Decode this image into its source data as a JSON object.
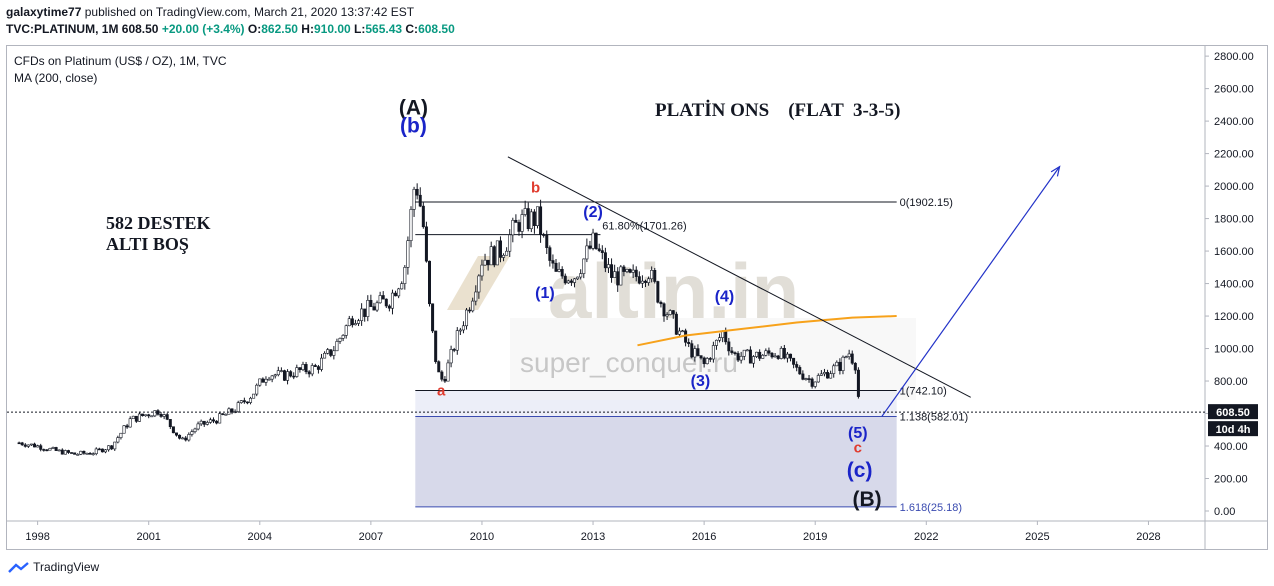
{
  "header": {
    "publisher": "galaxytime77",
    "published_text": "published on TradingView.com, March 21, 2020 13:37:42 EST",
    "symbol": "TVC:PLATINUM, 1M",
    "last": "608.50",
    "change": "+20.00 (+3.4%)",
    "o_label": "O:",
    "o_value": "862.50",
    "h_label": "H:",
    "h_value": "910.00",
    "l_label": "L:",
    "l_value": "565.43",
    "c_label": "C:",
    "c_value": "608.50"
  },
  "legend": {
    "series_title": "CFDs on Platinum (US$ / OZ), 1M, TVC",
    "indicator": "MA (200, close)"
  },
  "annotations": {
    "main_title": "PLATİN ONS    (FLAT  3-3-5)",
    "note_line1": "582 DESTEK",
    "note_line2": "ALTI BOŞ",
    "waves": [
      "(A)",
      "(b)",
      "b",
      "a",
      "(1)",
      "(2)",
      "(3)",
      "(4)",
      "(5)",
      "c",
      "(c)",
      "(B)"
    ]
  },
  "watermark": {
    "brand": "altin.in",
    "author": "super_conquer.ru"
  },
  "price_badge": {
    "value": "608.50",
    "countdown": "10d 4h"
  },
  "footer": {
    "brand": "TradingView"
  },
  "colors": {
    "candle": "#131722",
    "ma": "#f7a21b",
    "wave_blue": "#1a24c8",
    "wave_red": "#e03b2e",
    "fib_box": "#d4d7e8",
    "fib_box_light": "#eaeaf7",
    "trend_arrow": "#2333c8"
  },
  "chart_data": {
    "type": "candlestick",
    "xlabel": "",
    "ylabel": "",
    "x_ticks": [
      "1998",
      "2001",
      "2004",
      "2007",
      "2010",
      "2013",
      "2016",
      "2019",
      "2022",
      "2025",
      "2028"
    ],
    "y_ticks": [
      "2800.00",
      "2600.00",
      "2400.00",
      "2200.00",
      "2000.00",
      "1800.00",
      "1600.00",
      "1400.00",
      "1200.00",
      "1000.00",
      "800.00",
      "600.00",
      "400.00",
      "200.00",
      "0.00"
    ],
    "ylim": [
      0,
      2850
    ],
    "xlim": [
      1997.2,
      2029.5
    ],
    "series": [
      {
        "name": "CFDs on Platinum (US$ / OZ), 1M, TVC",
        "points": [
          [
            1997.5,
            420
          ],
          [
            1998.0,
            400
          ],
          [
            1998.5,
            370
          ],
          [
            1999.0,
            350
          ],
          [
            1999.5,
            360
          ],
          [
            2000.0,
            400
          ],
          [
            2000.5,
            560
          ],
          [
            2001.0,
            600
          ],
          [
            2001.3,
            620
          ],
          [
            2001.6,
            520
          ],
          [
            2001.9,
            430
          ],
          [
            2002.3,
            520
          ],
          [
            2002.8,
            560
          ],
          [
            2003.3,
            620
          ],
          [
            2003.8,
            720
          ],
          [
            2004.2,
            850
          ],
          [
            2004.6,
            830
          ],
          [
            2005.0,
            860
          ],
          [
            2005.5,
            880
          ],
          [
            2006.0,
            1000
          ],
          [
            2006.5,
            1200
          ],
          [
            2007.0,
            1250
          ],
          [
            2007.5,
            1300
          ],
          [
            2007.9,
            1480
          ],
          [
            2008.2,
            2050
          ],
          [
            2008.4,
            1800
          ],
          [
            2008.6,
            1200
          ],
          [
            2008.8,
            850
          ],
          [
            2008.95,
            800
          ],
          [
            2009.3,
            1050
          ],
          [
            2009.7,
            1300
          ],
          [
            2010.0,
            1550
          ],
          [
            2010.5,
            1600
          ],
          [
            2011.0,
            1780
          ],
          [
            2011.5,
            1800
          ],
          [
            2011.8,
            1550
          ],
          [
            2012.0,
            1450
          ],
          [
            2012.5,
            1450
          ],
          [
            2013.0,
            1650
          ],
          [
            2013.5,
            1450
          ],
          [
            2014.0,
            1430
          ],
          [
            2014.5,
            1480
          ],
          [
            2014.8,
            1300
          ],
          [
            2015.2,
            1150
          ],
          [
            2015.6,
            1000
          ],
          [
            2016.0,
            900
          ],
          [
            2016.5,
            1100
          ],
          [
            2016.8,
            960
          ],
          [
            2017.2,
            950
          ],
          [
            2017.6,
            960
          ],
          [
            2018.0,
            980
          ],
          [
            2018.5,
            870
          ],
          [
            2018.9,
            800
          ],
          [
            2019.3,
            850
          ],
          [
            2019.7,
            900
          ],
          [
            2019.9,
            980
          ],
          [
            2020.1,
            900
          ],
          [
            2020.2,
            608.5
          ]
        ]
      },
      {
        "name": "MA (200, close)",
        "points": [
          [
            2014.2,
            1020
          ],
          [
            2015.5,
            1080
          ],
          [
            2017.0,
            1120
          ],
          [
            2018.5,
            1160
          ],
          [
            2020.0,
            1190
          ],
          [
            2021.2,
            1200
          ]
        ]
      }
    ],
    "fib_levels": [
      {
        "label": "0(1902.15)",
        "value": 1902.15
      },
      {
        "label": "61.80%(1701.26)",
        "value": 1701.26
      },
      {
        "label": "1(742.10)",
        "value": 742.1
      },
      {
        "label": "1.138(582.01)",
        "value": 582.01
      },
      {
        "label": "1.618(25.18)",
        "value": 25.18
      }
    ],
    "trendline": {
      "from": [
        2010.7,
        2180
      ],
      "to": [
        2023.2,
        700
      ]
    },
    "projection_arrow": {
      "from": [
        2020.8,
        582
      ],
      "to": [
        2025.6,
        2120
      ]
    },
    "wave_labels": [
      {
        "text": "(A)",
        "x": 2008.15,
        "y": 2440,
        "color": "black"
      },
      {
        "text": "(b)",
        "x": 2008.15,
        "y": 2330,
        "color": "blue"
      },
      {
        "text": "b",
        "x": 2011.45,
        "y": 1960,
        "color": "red"
      },
      {
        "text": "a",
        "x": 2008.9,
        "y": 710,
        "color": "red"
      },
      {
        "text": "(1)",
        "x": 2011.7,
        "y": 1310,
        "color": "blue"
      },
      {
        "text": "(2)",
        "x": 2013.0,
        "y": 1810,
        "color": "blue"
      },
      {
        "text": "(3)",
        "x": 2015.9,
        "y": 770,
        "color": "blue"
      },
      {
        "text": "(4)",
        "x": 2016.55,
        "y": 1290,
        "color": "blue"
      },
      {
        "text": "(5)",
        "x": 2020.15,
        "y": 450,
        "color": "blue"
      },
      {
        "text": "c",
        "x": 2020.15,
        "y": 360,
        "color": "red"
      },
      {
        "text": "(c)",
        "x": 2020.2,
        "y": 210,
        "color": "blue"
      },
      {
        "text": "(B)",
        "x": 2020.4,
        "y": 30,
        "color": "black"
      }
    ],
    "grid": false,
    "last_price": 608.5
  }
}
